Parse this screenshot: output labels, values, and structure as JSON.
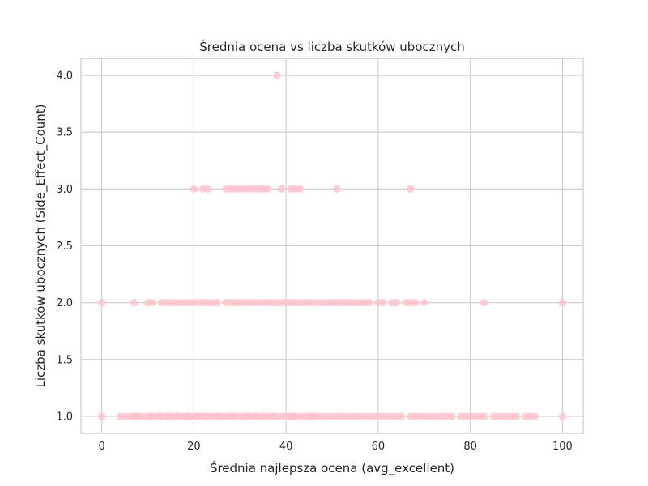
{
  "chart_data": {
    "type": "scatter",
    "title": "Średnia ocena vs liczba skutków ubocznych",
    "xlabel": "Średnia najlepsza ocena (avg_excellent)",
    "ylabel": "Liczba skutków ubocznych (Side_Effect_Count)",
    "xlim": [
      -4.5,
      104.5
    ],
    "ylim": [
      0.85,
      4.15
    ],
    "x_ticks": [
      0,
      20,
      40,
      60,
      80,
      100
    ],
    "y_ticks": [
      1.0,
      1.5,
      2.0,
      2.5,
      3.0,
      3.5,
      4.0
    ],
    "x_tick_labels": [
      "0",
      "20",
      "40",
      "60",
      "80",
      "100"
    ],
    "y_tick_labels": [
      "1.0",
      "1.5",
      "2.0",
      "2.5",
      "3.0",
      "3.5",
      "4.0"
    ],
    "grid": true,
    "colors": {
      "points": "#ffc0cb",
      "grid": "#cccccc",
      "text": "#262626",
      "background": "#ffffff"
    },
    "series": [
      {
        "points": [
          [
            0,
            1
          ],
          [
            4,
            1
          ],
          [
            5,
            1
          ],
          [
            6,
            1
          ],
          [
            7,
            1
          ],
          [
            7.5,
            1
          ],
          [
            8,
            1
          ],
          [
            9,
            1
          ],
          [
            10,
            1
          ],
          [
            10.5,
            1
          ],
          [
            11,
            1
          ],
          [
            12,
            1
          ],
          [
            12.5,
            1
          ],
          [
            13,
            1
          ],
          [
            14,
            1
          ],
          [
            14.5,
            1
          ],
          [
            15,
            1
          ],
          [
            16,
            1
          ],
          [
            16.5,
            1
          ],
          [
            17,
            1
          ],
          [
            18,
            1
          ],
          [
            18.5,
            1
          ],
          [
            19,
            1
          ],
          [
            20,
            1
          ],
          [
            20.5,
            1
          ],
          [
            21,
            1
          ],
          [
            22,
            1
          ],
          [
            22.5,
            1
          ],
          [
            23,
            1
          ],
          [
            24,
            1
          ],
          [
            25,
            1
          ],
          [
            25.5,
            1
          ],
          [
            26,
            1
          ],
          [
            27,
            1
          ],
          [
            28,
            1
          ],
          [
            28.5,
            1
          ],
          [
            29,
            1
          ],
          [
            30,
            1
          ],
          [
            31,
            1
          ],
          [
            31.5,
            1
          ],
          [
            32,
            1
          ],
          [
            33,
            1
          ],
          [
            33.5,
            1
          ],
          [
            34,
            1
          ],
          [
            35,
            1
          ],
          [
            36,
            1
          ],
          [
            37,
            1
          ],
          [
            37.5,
            1
          ],
          [
            38,
            1
          ],
          [
            39,
            1
          ],
          [
            40,
            1
          ],
          [
            41,
            1
          ],
          [
            41.5,
            1
          ],
          [
            42,
            1
          ],
          [
            43,
            1
          ],
          [
            44,
            1
          ],
          [
            45,
            1
          ],
          [
            45.5,
            1
          ],
          [
            46,
            1
          ],
          [
            47,
            1
          ],
          [
            48,
            1
          ],
          [
            49,
            1
          ],
          [
            50,
            1
          ],
          [
            51,
            1
          ],
          [
            52,
            1
          ],
          [
            53,
            1
          ],
          [
            54,
            1
          ],
          [
            55,
            1
          ],
          [
            56,
            1
          ],
          [
            57,
            1
          ],
          [
            58,
            1
          ],
          [
            59,
            1
          ],
          [
            60,
            1
          ],
          [
            61,
            1
          ],
          [
            62,
            1
          ],
          [
            63,
            1
          ],
          [
            64,
            1
          ],
          [
            65,
            1
          ],
          [
            67,
            1
          ],
          [
            68,
            1
          ],
          [
            69,
            1
          ],
          [
            70,
            1
          ],
          [
            71,
            1
          ],
          [
            72,
            1
          ],
          [
            73,
            1
          ],
          [
            74,
            1
          ],
          [
            75,
            1
          ],
          [
            76,
            1
          ],
          [
            78,
            1
          ],
          [
            79,
            1
          ],
          [
            80,
            1
          ],
          [
            81,
            1
          ],
          [
            82,
            1
          ],
          [
            83,
            1
          ],
          [
            85,
            1
          ],
          [
            86,
            1
          ],
          [
            87,
            1
          ],
          [
            88,
            1
          ],
          [
            89,
            1
          ],
          [
            90,
            1
          ],
          [
            92,
            1
          ],
          [
            93,
            1
          ],
          [
            94,
            1
          ],
          [
            100,
            1
          ],
          [
            0,
            2
          ],
          [
            7,
            2
          ],
          [
            10,
            2
          ],
          [
            11,
            2
          ],
          [
            13,
            2
          ],
          [
            14,
            2
          ],
          [
            15,
            2
          ],
          [
            16,
            2
          ],
          [
            17,
            2
          ],
          [
            18,
            2
          ],
          [
            19,
            2
          ],
          [
            20,
            2
          ],
          [
            21,
            2
          ],
          [
            22,
            2
          ],
          [
            23,
            2
          ],
          [
            24,
            2
          ],
          [
            25,
            2
          ],
          [
            27,
            2
          ],
          [
            28,
            2
          ],
          [
            29,
            2
          ],
          [
            30,
            2
          ],
          [
            31,
            2
          ],
          [
            32,
            2
          ],
          [
            33,
            2
          ],
          [
            34,
            2
          ],
          [
            35,
            2
          ],
          [
            36,
            2
          ],
          [
            37,
            2
          ],
          [
            38,
            2
          ],
          [
            39,
            2
          ],
          [
            40,
            2
          ],
          [
            41,
            2
          ],
          [
            42,
            2
          ],
          [
            43,
            2
          ],
          [
            44,
            2
          ],
          [
            45,
            2
          ],
          [
            46,
            2
          ],
          [
            47,
            2
          ],
          [
            48,
            2
          ],
          [
            49,
            2
          ],
          [
            50,
            2
          ],
          [
            51,
            2
          ],
          [
            52,
            2
          ],
          [
            53,
            2
          ],
          [
            54,
            2
          ],
          [
            55,
            2
          ],
          [
            56,
            2
          ],
          [
            57,
            2
          ],
          [
            58,
            2
          ],
          [
            60,
            2
          ],
          [
            61,
            2
          ],
          [
            63,
            2
          ],
          [
            64,
            2
          ],
          [
            66,
            2
          ],
          [
            67,
            2
          ],
          [
            68,
            2
          ],
          [
            70,
            2
          ],
          [
            83,
            2
          ],
          [
            100,
            2
          ],
          [
            20,
            3
          ],
          [
            22,
            3
          ],
          [
            23,
            3
          ],
          [
            27,
            3
          ],
          [
            28,
            3
          ],
          [
            29,
            3
          ],
          [
            30,
            3
          ],
          [
            31,
            3
          ],
          [
            32,
            3
          ],
          [
            33,
            3
          ],
          [
            34,
            3
          ],
          [
            35,
            3
          ],
          [
            36,
            3
          ],
          [
            39,
            3
          ],
          [
            41,
            3
          ],
          [
            42,
            3
          ],
          [
            43,
            3
          ],
          [
            51,
            3
          ],
          [
            67,
            3
          ],
          [
            38,
            4
          ]
        ]
      }
    ]
  }
}
